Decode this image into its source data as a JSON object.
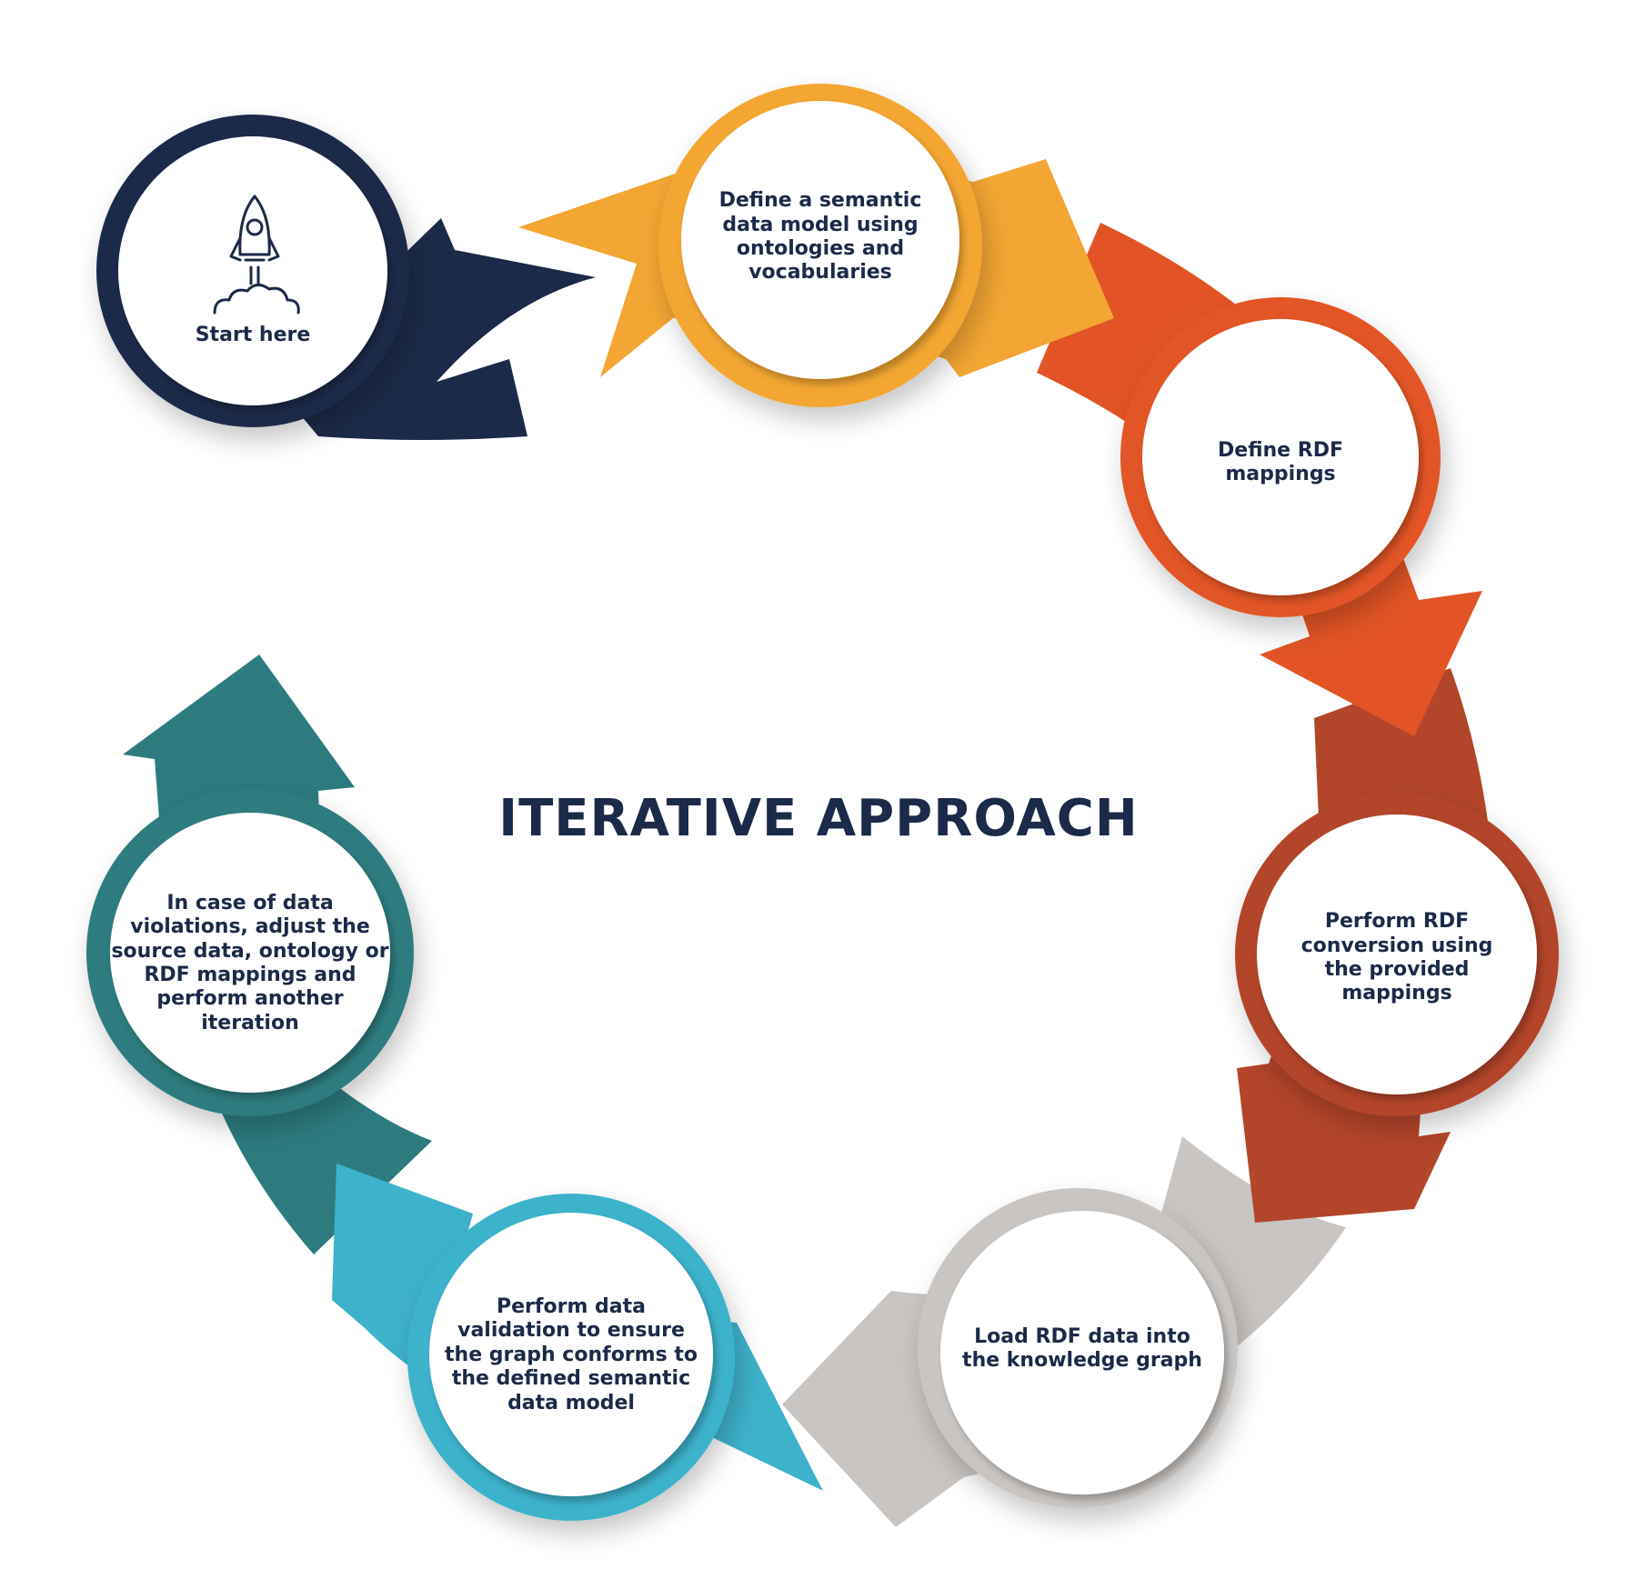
{
  "title": "ITERATIVE APPROACH",
  "colors": {
    "navy": "#1b2a48",
    "yellow": "#f3a633",
    "orange": "#e25425",
    "rust": "#b3452a",
    "gray": "#c9c5c2",
    "light_blue": "#3eb2cb",
    "teal": "#2d7b7f"
  },
  "steps": [
    {
      "id": "start",
      "icon": "rocket-icon",
      "text": "Start here"
    },
    {
      "id": "model",
      "text": "Define a semantic\ndata model using\nontologies and\nvocabularies"
    },
    {
      "id": "mappings",
      "text": "Define RDF\nmappings"
    },
    {
      "id": "conversion",
      "text": "Perform RDF\nconversion using\nthe provided\nmappings"
    },
    {
      "id": "load",
      "text": "Load RDF data into\nthe knowledge graph"
    },
    {
      "id": "validation",
      "text": "Perform data\nvalidation to ensure\nthe graph conforms to\nthe defined semantic\ndata model"
    },
    {
      "id": "adjust",
      "text": "In case of data\nviolations, adjust the\nsource data, ontology or\nRDF mappings and\nperform another\niteration"
    }
  ]
}
